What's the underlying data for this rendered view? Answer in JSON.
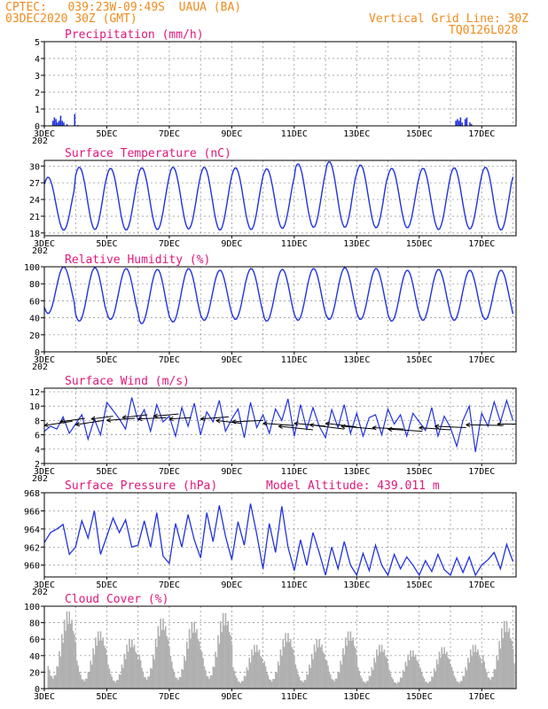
{
  "header": {
    "line1_left": "CPTEC:   039:23W-09:49S  UAUA (BA)",
    "line2_left": "03DEC2020 30Z (GMT)",
    "line1_right": "Vertical Grid Line: 30Z",
    "line2_right": "TQ0126L028"
  },
  "x_ticks": [
    "3DEC",
    "5DEC",
    "7DEC",
    "9DEC",
    "11DEC",
    "13DEC",
    "15DEC",
    "17DEC"
  ],
  "year_fragment": "202",
  "colors": {
    "line": "#2233dd",
    "title": "#e0187a",
    "header": "#f08c1e",
    "cloud": "#b0b0b0",
    "wind": "#000000"
  },
  "chart_data": [
    {
      "type": "bar",
      "title": "Precipitation (mm/h)",
      "ylim": [
        0,
        5
      ],
      "yticks": [
        "0",
        "1",
        "2",
        "3",
        "4",
        "5"
      ],
      "x": [
        0.25,
        0.3,
        0.35,
        0.4,
        0.45,
        0.5,
        0.55,
        0.6,
        0.7,
        0.95,
        1.05,
        13.15,
        13.2,
        13.25,
        13.3,
        13.35,
        13.45,
        13.5,
        13.6,
        13.65
      ],
      "values": [
        0.3,
        0.5,
        0.4,
        0.2,
        0.3,
        0.6,
        0.3,
        0.2,
        0.1,
        0.7,
        0.05,
        0.3,
        0.4,
        0.3,
        0.5,
        0.2,
        0.4,
        0.5,
        0.2,
        0.1
      ]
    },
    {
      "type": "line",
      "title": "Surface Temperature (nC)",
      "ylim": [
        17.5,
        31
      ],
      "yticks": [
        "18",
        "21",
        "24",
        "27",
        "30"
      ],
      "daily_min": [
        18.5,
        18.6,
        18.5,
        18.6,
        18.7,
        18.5,
        18.6,
        18.8,
        19.0,
        19.0,
        18.9,
        18.9,
        18.6,
        18.7,
        18.5,
        18.8
      ],
      "daily_max": [
        28.0,
        29.8,
        29.6,
        29.7,
        29.8,
        29.8,
        29.7,
        29.5,
        30.4,
        30.8,
        30.2,
        29.6,
        29.6,
        29.7,
        29.8,
        29.5
      ]
    },
    {
      "type": "line",
      "title": "Relative Humidity (%)",
      "ylim": [
        0,
        100
      ],
      "yticks": [
        "0",
        "20",
        "40",
        "60",
        "80",
        "100"
      ],
      "daily_min": [
        45,
        36,
        38,
        33,
        35,
        37,
        38,
        36,
        37,
        38,
        38,
        36,
        37,
        37,
        38,
        37
      ],
      "daily_max": [
        100,
        99,
        98,
        97,
        98,
        96,
        98,
        97,
        98,
        99,
        98,
        96,
        97,
        96,
        96,
        92
      ]
    },
    {
      "type": "line",
      "title": "Surface Wind (m/s)",
      "ylim": [
        2,
        12.5
      ],
      "yticks": [
        "2",
        "4",
        "6",
        "8",
        "10",
        "12"
      ],
      "speed_x": [
        0,
        0.2,
        0.4,
        0.6,
        0.8,
        1.0,
        1.2,
        1.4,
        1.6,
        1.8,
        2.0,
        2.2,
        2.4,
        2.6,
        2.8,
        3.0,
        3.2,
        3.4,
        3.6,
        3.8,
        4.0,
        4.2,
        4.4,
        4.6,
        4.8,
        5.0,
        5.2,
        5.4,
        5.6,
        5.8,
        6.0,
        6.2,
        6.4,
        6.6,
        6.8,
        7.0,
        7.2,
        7.4,
        7.6,
        7.8,
        8.0,
        8.2,
        8.4,
        8.6,
        8.8,
        9.0,
        9.2,
        9.4,
        9.6,
        9.8,
        10.0,
        10.2,
        10.4,
        10.6,
        10.8,
        11.0,
        11.2,
        11.4,
        11.6,
        11.8,
        12.0,
        12.2,
        12.4,
        12.6,
        12.8,
        13.0,
        13.2,
        13.4,
        13.6,
        13.8,
        14.0,
        14.2,
        14.4,
        14.6,
        14.8,
        15.0
      ],
      "speed": [
        6.5,
        7.2,
        6.8,
        8.5,
        6.2,
        7.5,
        8.8,
        5.4,
        8.2,
        6.0,
        10.5,
        9.4,
        8.2,
        6.8,
        11.2,
        8.0,
        9.5,
        6.5,
        10.2,
        7.8,
        8.6,
        5.8,
        9.8,
        7.2,
        10.4,
        6.0,
        9.2,
        7.8,
        10.8,
        6.5,
        8.2,
        9.6,
        5.6,
        10.5,
        7.0,
        8.8,
        6.2,
        9.6,
        8.0,
        11.0,
        5.8,
        10.2,
        6.8,
        9.8,
        7.2,
        5.6,
        9.5,
        7.0,
        10.2,
        6.2,
        9.0,
        5.8,
        8.4,
        8.8,
        6.0,
        9.6,
        7.5,
        8.8,
        5.8,
        9.0,
        7.8,
        6.6,
        9.8,
        5.8,
        8.6,
        7.0,
        4.4,
        8.0,
        10.0,
        3.6,
        9.0,
        7.2,
        10.6,
        7.8,
        10.8,
        8.0
      ],
      "vectors": [
        {
          "x": 0.0,
          "y": 7.3,
          "u": 0.9,
          "v": 0.6
        },
        {
          "x": 0.5,
          "y": 7.8,
          "u": 0.8,
          "v": 0.5
        },
        {
          "x": 1.0,
          "y": 7.4,
          "u": 0.9,
          "v": 0.6
        },
        {
          "x": 1.5,
          "y": 8.2,
          "u": 0.7,
          "v": 0.4
        },
        {
          "x": 2.0,
          "y": 8.0,
          "u": 0.9,
          "v": 0.3
        },
        {
          "x": 2.5,
          "y": 8.4,
          "u": 0.8,
          "v": 0.4
        },
        {
          "x": 3.0,
          "y": 8.2,
          "u": 0.9,
          "v": 0.2
        },
        {
          "x": 3.5,
          "y": 8.6,
          "u": 0.8,
          "v": 0.3
        },
        {
          "x": 4.0,
          "y": 8.2,
          "u": 0.7,
          "v": 0.2
        },
        {
          "x": 5.0,
          "y": 8.2,
          "u": 0.9,
          "v": 0.3
        },
        {
          "x": 5.5,
          "y": 8.0,
          "u": 0.8,
          "v": -0.4
        },
        {
          "x": 6.0,
          "y": 7.8,
          "u": 1.0,
          "v": 0.2
        },
        {
          "x": 7.0,
          "y": 7.6,
          "u": 1.0,
          "v": -0.3
        },
        {
          "x": 7.5,
          "y": 7.2,
          "u": 1.1,
          "v": -0.5
        },
        {
          "x": 8.0,
          "y": 7.6,
          "u": 1.0,
          "v": -0.4
        },
        {
          "x": 8.5,
          "y": 7.4,
          "u": 1.1,
          "v": -0.6
        },
        {
          "x": 9.0,
          "y": 7.6,
          "u": 1.0,
          "v": -0.5
        },
        {
          "x": 9.5,
          "y": 7.2,
          "u": 1.1,
          "v": -0.4
        },
        {
          "x": 10.5,
          "y": 7.0,
          "u": 1.0,
          "v": -0.2
        },
        {
          "x": 11.0,
          "y": 6.8,
          "u": 1.1,
          "v": -0.3
        },
        {
          "x": 12.0,
          "y": 7.0,
          "u": 1.0,
          "v": -0.3
        },
        {
          "x": 12.5,
          "y": 7.2,
          "u": 1.0,
          "v": -0.2
        },
        {
          "x": 13.5,
          "y": 7.4,
          "u": 1.2,
          "v": -0.1
        },
        {
          "x": 14.5,
          "y": 7.5,
          "u": 1.3,
          "v": 0.0
        }
      ]
    },
    {
      "type": "line",
      "title": "Surface Pressure (hPa)",
      "annotation": "Model Altitude: 439.011 m",
      "ylim": [
        958.7,
        968
      ],
      "yticks": [
        "960",
        "962",
        "964",
        "966",
        "968"
      ],
      "x": [
        0,
        0.2,
        0.4,
        0.6,
        0.8,
        1.0,
        1.2,
        1.4,
        1.6,
        1.8,
        2.0,
        2.2,
        2.4,
        2.6,
        2.8,
        3.0,
        3.2,
        3.4,
        3.6,
        3.8,
        4.0,
        4.2,
        4.4,
        4.6,
        4.8,
        5.0,
        5.2,
        5.4,
        5.6,
        5.8,
        6.0,
        6.2,
        6.4,
        6.6,
        6.8,
        7.0,
        7.2,
        7.4,
        7.6,
        7.8,
        8.0,
        8.2,
        8.4,
        8.6,
        8.8,
        9.0,
        9.2,
        9.4,
        9.6,
        9.8,
        10.0,
        10.2,
        10.4,
        10.6,
        10.8,
        11.0,
        11.2,
        11.4,
        11.6,
        11.8,
        12.0,
        12.2,
        12.4,
        12.6,
        12.8,
        13.0,
        13.2,
        13.4,
        13.6,
        13.8,
        14.0,
        14.2,
        14.4,
        14.6,
        14.8,
        15.0
      ],
      "values": [
        962.5,
        963.6,
        964.0,
        964.5,
        961.2,
        962.0,
        964.9,
        963.0,
        966.0,
        961.2,
        963.2,
        965.2,
        963.6,
        965.0,
        962.0,
        962.2,
        964.9,
        962.0,
        965.8,
        961.0,
        960.2,
        964.6,
        962.0,
        965.6,
        962.8,
        960.8,
        965.8,
        962.6,
        966.6,
        963.2,
        960.6,
        964.8,
        962.2,
        966.8,
        963.4,
        959.6,
        964.6,
        961.4,
        966.5,
        962.0,
        959.4,
        962.8,
        960.0,
        963.6,
        961.4,
        958.9,
        962.0,
        959.6,
        962.6,
        960.0,
        958.9,
        961.3,
        959.4,
        962.2,
        960.0,
        958.9,
        961.2,
        959.6,
        960.9,
        960.0,
        958.9,
        960.5,
        959.3,
        961.2,
        959.5,
        958.9,
        960.8,
        959.2,
        960.9,
        958.9,
        960.0,
        960.6,
        961.4,
        959.6,
        962.3,
        960.4
      ]
    },
    {
      "type": "bar",
      "title": "Cloud Cover (%)",
      "ylim": [
        0,
        100
      ],
      "yticks": [
        "0",
        "20",
        "40",
        "60",
        "80",
        "100"
      ],
      "daily_peak": [
        97,
        72,
        62,
        88,
        84,
        95,
        55,
        70,
        62,
        72,
        55,
        48,
        52,
        55,
        85,
        65
      ]
    }
  ]
}
